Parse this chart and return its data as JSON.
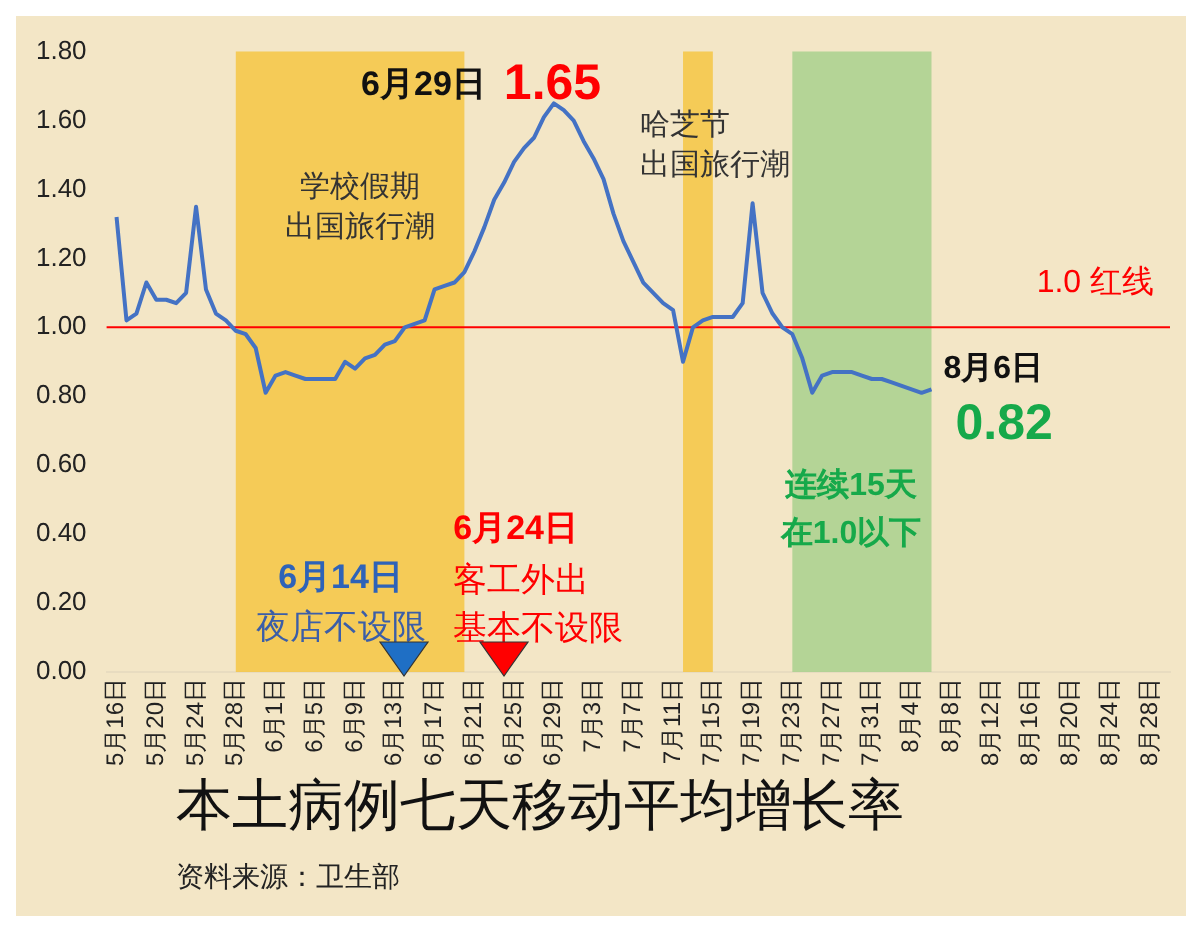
{
  "chart_data": {
    "type": "line",
    "title": "本土病例七天移动平均增长率",
    "x": [
      "--05-16",
      "--05-17",
      "--05-18",
      "--05-19",
      "--05-20",
      "--05-21",
      "--05-22",
      "--05-23",
      "--05-24",
      "--05-25",
      "--05-26",
      "--05-27",
      "--05-28",
      "--05-29",
      "--05-30",
      "--05-31",
      "--06-01",
      "--06-02",
      "--06-03",
      "--06-04",
      "--06-05",
      "--06-06",
      "--06-07",
      "--06-08",
      "--06-09",
      "--06-10",
      "--06-11",
      "--06-12",
      "--06-13",
      "--06-14",
      "--06-15",
      "--06-16",
      "--06-17",
      "--06-18",
      "--06-19",
      "--06-20",
      "--06-21",
      "--06-22",
      "--06-23",
      "--06-24",
      "--06-25",
      "--06-26",
      "--06-27",
      "--06-28",
      "--06-29",
      "--06-30",
      "--07-01",
      "--07-02",
      "--07-03",
      "--07-04",
      "--07-05",
      "--07-06",
      "--07-07",
      "--07-08",
      "--07-09",
      "--07-10",
      "--07-11",
      "--07-12",
      "--07-13",
      "--07-14",
      "--07-15",
      "--07-16",
      "--07-17",
      "--07-18",
      "--07-19",
      "--07-20",
      "--07-21",
      "--07-22",
      "--07-23",
      "--07-24",
      "--07-25",
      "--07-26",
      "--07-27",
      "--07-28",
      "--07-29",
      "--07-30",
      "--07-31",
      "--08-01",
      "--08-02",
      "--08-03",
      "--08-04",
      "--08-05",
      "--08-06"
    ],
    "series": [
      {
        "color": "#4472c4",
        "values": [
          1.32,
          1.02,
          1.04,
          1.13,
          1.08,
          1.08,
          1.07,
          1.1,
          1.35,
          1.11,
          1.04,
          1.02,
          0.99,
          0.98,
          0.94,
          0.81,
          0.86,
          0.87,
          0.86,
          0.85,
          0.85,
          0.85,
          0.85,
          0.9,
          0.88,
          0.91,
          0.92,
          0.95,
          0.96,
          1.0,
          1.01,
          1.02,
          1.11,
          1.12,
          1.13,
          1.16,
          1.22,
          1.29,
          1.37,
          1.42,
          1.48,
          1.52,
          1.55,
          1.61,
          1.65,
          1.63,
          1.6,
          1.54,
          1.49,
          1.43,
          1.33,
          1.25,
          1.19,
          1.13,
          1.1,
          1.07,
          1.05,
          0.9,
          1.0,
          1.02,
          1.03,
          1.03,
          1.03,
          1.07,
          1.36,
          1.1,
          1.04,
          1.0,
          0.98,
          0.91,
          0.81,
          0.86,
          0.87,
          0.87,
          0.87,
          0.86,
          0.85,
          0.85,
          0.84,
          0.83,
          0.82,
          0.81,
          0.82
        ]
      }
    ],
    "xlim": [
      "--05-15",
      "--08-30"
    ],
    "xticks": [
      {
        "value": "--05-16",
        "label": "5月16日"
      },
      {
        "value": "--05-20",
        "label": "5月20日"
      },
      {
        "value": "--05-24",
        "label": "5月24日"
      },
      {
        "value": "--05-28",
        "label": "5月28日"
      },
      {
        "value": "--06-01",
        "label": "6月1日"
      },
      {
        "value": "--06-05",
        "label": "6月5日"
      },
      {
        "value": "--06-09",
        "label": "6月9日"
      },
      {
        "value": "--06-13",
        "label": "6月13日"
      },
      {
        "value": "--06-17",
        "label": "6月17日"
      },
      {
        "value": "--06-21",
        "label": "6月21日"
      },
      {
        "value": "--06-25",
        "label": "6月25日"
      },
      {
        "value": "--06-29",
        "label": "6月29日"
      },
      {
        "value": "--07-03",
        "label": "7月3日"
      },
      {
        "value": "--07-07",
        "label": "7月7日"
      },
      {
        "value": "--07-11",
        "label": "7月11日"
      },
      {
        "value": "--07-15",
        "label": "7月15日"
      },
      {
        "value": "--07-19",
        "label": "7月19日"
      },
      {
        "value": "--07-23",
        "label": "7月23日"
      },
      {
        "value": "--07-27",
        "label": "7月27日"
      },
      {
        "value": "--07-31",
        "label": "7月31日"
      },
      {
        "value": "--08-04",
        "label": "8月4日"
      },
      {
        "value": "--08-08",
        "label": "8月8日"
      },
      {
        "value": "--08-12",
        "label": "8月12日"
      },
      {
        "value": "--08-16",
        "label": "8月16日"
      },
      {
        "value": "--08-20",
        "label": "8月20日"
      },
      {
        "value": "--08-24",
        "label": "8月24日"
      },
      {
        "value": "--08-28",
        "label": "8月28日"
      }
    ],
    "ylim": [
      0,
      1.8
    ],
    "yticks": [
      {
        "value": 0,
        "label": "0.00"
      },
      {
        "value": 0.2,
        "label": "0.20"
      },
      {
        "value": 0.4,
        "label": "0.40"
      },
      {
        "value": 0.6,
        "label": "0.60"
      },
      {
        "value": 0.8,
        "label": "0.80"
      },
      {
        "value": 1,
        "label": "1.00"
      },
      {
        "value": 1.2,
        "label": "1.20"
      },
      {
        "value": 1.4,
        "label": "1.40"
      },
      {
        "value": 1.6,
        "label": "1.60"
      },
      {
        "value": 1.8,
        "label": "1.80"
      }
    ],
    "bands": [
      {
        "axis": "x",
        "from": "--05-28",
        "to": "--06-20",
        "color": "#f5c543"
      },
      {
        "axis": "x",
        "from": "--07-12",
        "to": "--07-15",
        "color": "#f5c543"
      },
      {
        "axis": "x",
        "from": "--07-23",
        "to": "--08-06",
        "color": "#a8d08d"
      }
    ],
    "ref_lines": [
      {
        "axis": "y",
        "value": 1.0,
        "label": "1.0 红线",
        "color": "#ff0000"
      }
    ],
    "annotations": [
      {
        "text": "6月29日",
        "x": "--06-29",
        "y": 1.65
      },
      {
        "text": "1.65",
        "x": "--06-29",
        "y": 1.65
      },
      "学校假期出国旅行潮",
      "哈芝节出国旅行潮",
      {
        "text": "8月6日",
        "x": "--08-06",
        "y": 0.82
      },
      {
        "text": "0.82",
        "x": "--08-06",
        "y": 0.82
      },
      "连续15天在1.0以下",
      "6月14日",
      "夜店不设限",
      "6月24日",
      "客工外出基本不设限",
      "资料来源：卫生部"
    ],
    "marker": "none",
    "line_style": "solid",
    "grid": false,
    "legend": false
  }
}
